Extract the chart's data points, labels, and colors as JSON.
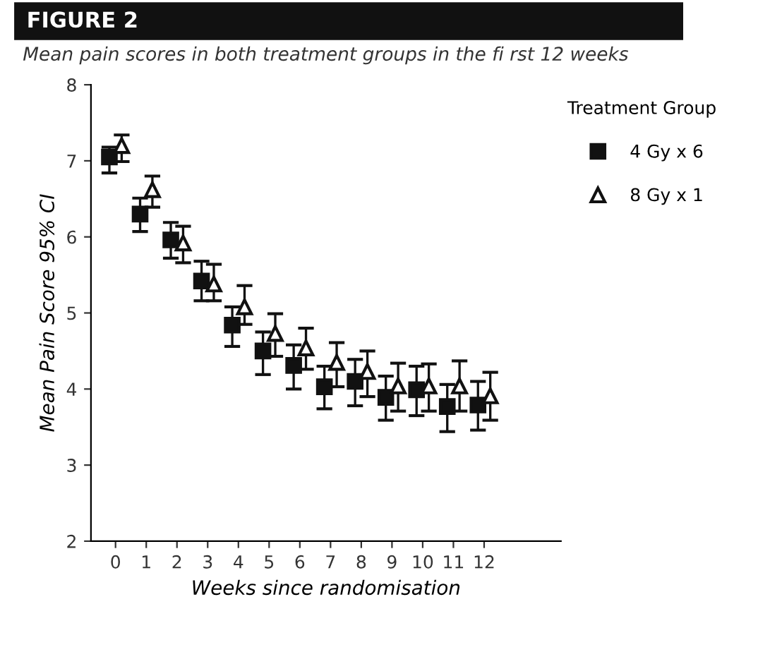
{
  "chart_data": {
    "type": "scatter",
    "title": "FIGURE 2",
    "subtitle": "Mean pain scores in both treatment groups in the fi rst 12 weeks",
    "xlabel": "Weeks since randomisation",
    "ylabel": "Mean Pain Score 95% CI",
    "legend_title": "Treatment Group",
    "categories": [
      "0",
      "1",
      "2",
      "3",
      "4",
      "5",
      "6",
      "7",
      "8",
      "9",
      "10",
      "11",
      "12"
    ],
    "series": [
      {
        "name": "4 Gy x 6",
        "color": "#111111",
        "marker": "square",
        "values": [
          7.05,
          6.3,
          5.96,
          5.42,
          4.84,
          4.5,
          4.31,
          4.03,
          4.1,
          3.89,
          3.99,
          3.77,
          3.79
        ],
        "errors": [
          [
            6.84,
            7.18
          ],
          [
            6.07,
            6.51
          ],
          [
            5.72,
            6.19
          ],
          [
            5.16,
            5.68
          ],
          [
            4.56,
            5.08
          ],
          [
            4.19,
            4.75
          ],
          [
            4.0,
            4.58
          ],
          [
            3.74,
            4.3
          ],
          [
            3.78,
            4.39
          ],
          [
            3.59,
            4.17
          ],
          [
            3.65,
            4.3
          ],
          [
            3.44,
            4.06
          ],
          [
            3.46,
            4.1
          ]
        ]
      },
      {
        "name": "8 Gy x 1",
        "color": "#111111",
        "marker": "triangle",
        "values": [
          7.2,
          6.62,
          5.92,
          5.38,
          5.08,
          4.73,
          4.54,
          4.35,
          4.23,
          4.04,
          4.04,
          4.04,
          3.91
        ],
        "errors": [
          [
            6.99,
            7.34
          ],
          [
            6.39,
            6.8
          ],
          [
            5.66,
            6.14
          ],
          [
            5.16,
            5.64
          ],
          [
            4.85,
            5.36
          ],
          [
            4.43,
            4.99
          ],
          [
            4.26,
            4.8
          ],
          [
            4.03,
            4.61
          ],
          [
            3.9,
            4.5
          ],
          [
            3.71,
            4.34
          ],
          [
            3.71,
            4.33
          ],
          [
            3.71,
            4.37
          ],
          [
            3.59,
            4.22
          ]
        ]
      }
    ],
    "ylim": [
      2,
      8
    ],
    "yticks": [
      2,
      3,
      4,
      5,
      6,
      7,
      8
    ],
    "grid": false,
    "legend": "top right"
  }
}
